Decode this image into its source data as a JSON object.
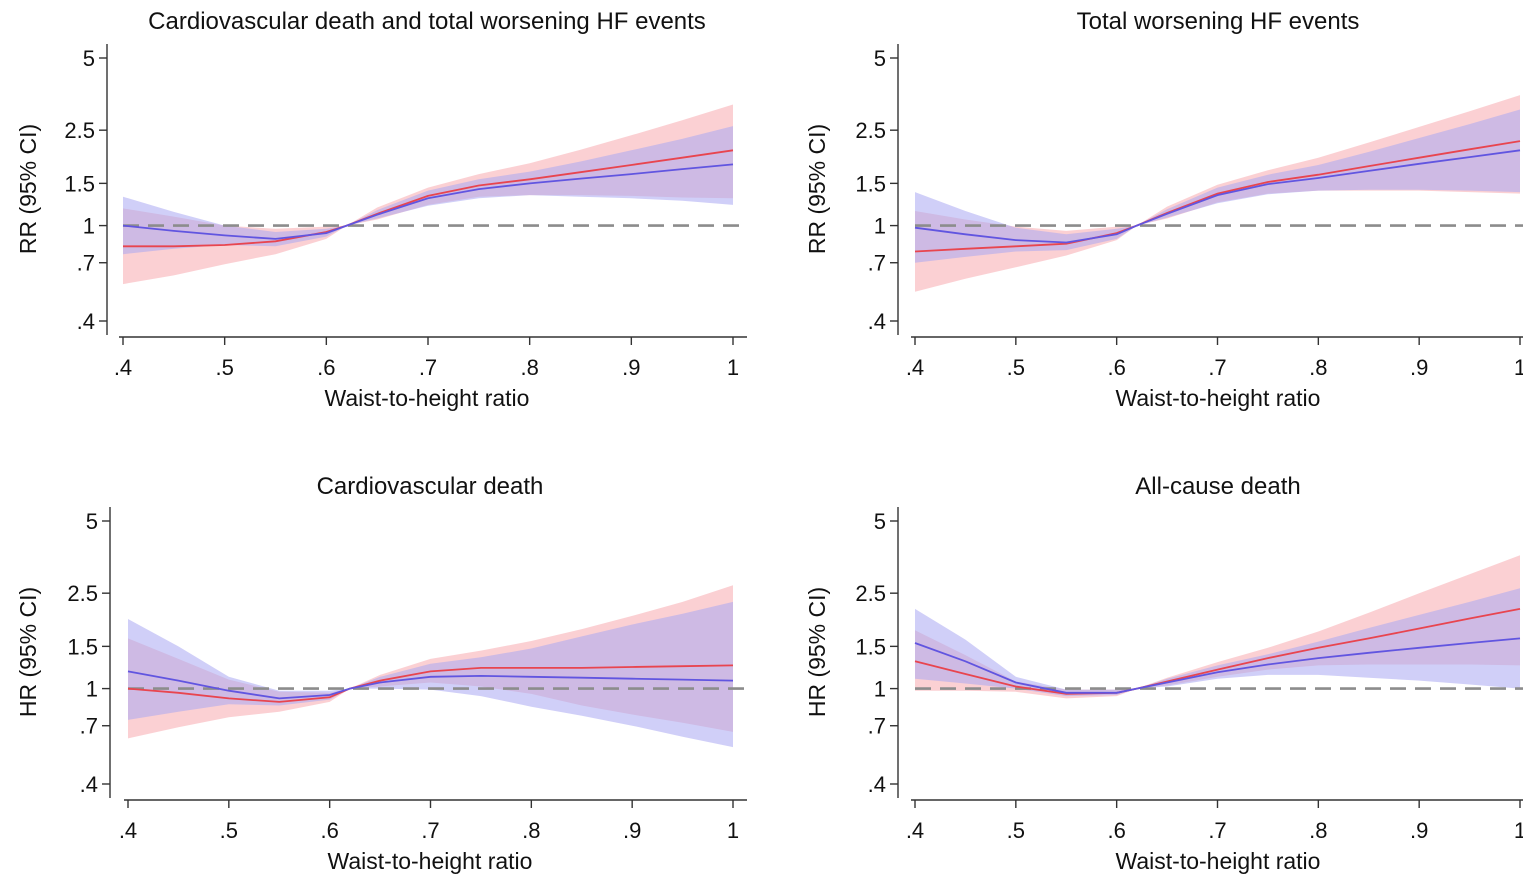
{
  "figure": {
    "colors": {
      "red": "#e8454f",
      "blue": "#6155e0",
      "red_band": "#f7a9ae",
      "blue_band": "#aaa8f2",
      "reference": "#8c8c8c"
    }
  },
  "chart_data": [
    {
      "type": "line",
      "title": "Cardiovascular death and total worsening HF events",
      "xlabel": "Waist-to-height ratio",
      "ylabel": "RR (95% CI)",
      "y_scale": "log",
      "xlim": [
        0.4,
        1.0
      ],
      "ylim": [
        0.36,
        5.5
      ],
      "x_ticks": [
        0.4,
        0.5,
        0.6,
        0.7,
        0.8,
        0.9,
        1.0
      ],
      "x_tick_labels": [
        ".4",
        ".5",
        ".6",
        ".7",
        ".8",
        ".9",
        "1"
      ],
      "y_ticks": [
        0.4,
        0.7,
        1,
        1.5,
        2.5,
        5
      ],
      "y_tick_labels": [
        ".4",
        ".7",
        "1",
        "1.5",
        "2.5",
        "5"
      ],
      "reference_line": 1,
      "x": [
        0.4,
        0.45,
        0.5,
        0.55,
        0.6,
        0.62,
        0.65,
        0.7,
        0.75,
        0.8,
        0.85,
        0.9,
        0.95,
        1.0
      ],
      "series": [
        {
          "color": "red",
          "values": [
            0.82,
            0.82,
            0.83,
            0.86,
            0.94,
            1.0,
            1.12,
            1.33,
            1.47,
            1.56,
            1.67,
            1.79,
            1.92,
            2.06
          ],
          "lower": [
            0.57,
            0.62,
            0.69,
            0.76,
            0.88,
            1.0,
            1.06,
            1.22,
            1.32,
            1.34,
            1.34,
            1.33,
            1.31,
            1.3
          ],
          "upper": [
            1.18,
            1.09,
            1.0,
            0.97,
            0.99,
            1.0,
            1.19,
            1.44,
            1.64,
            1.82,
            2.07,
            2.38,
            2.75,
            3.2
          ]
        },
        {
          "color": "blue",
          "values": [
            1.0,
            0.95,
            0.91,
            0.88,
            0.93,
            1.0,
            1.11,
            1.3,
            1.42,
            1.5,
            1.57,
            1.64,
            1.72,
            1.8
          ],
          "lower": [
            0.76,
            0.8,
            0.83,
            0.82,
            0.9,
            1.0,
            1.07,
            1.21,
            1.3,
            1.34,
            1.32,
            1.3,
            1.27,
            1.22
          ],
          "upper": [
            1.32,
            1.14,
            1.0,
            0.94,
            0.97,
            1.0,
            1.16,
            1.4,
            1.56,
            1.68,
            1.85,
            2.06,
            2.3,
            2.6
          ]
        }
      ]
    },
    {
      "type": "line",
      "title": "Total worsening HF events",
      "xlabel": "Waist-to-height ratio",
      "ylabel": "RR (95% CI)",
      "y_scale": "log",
      "xlim": [
        0.4,
        1.0
      ],
      "ylim": [
        0.36,
        5.5
      ],
      "x_ticks": [
        0.4,
        0.5,
        0.6,
        0.7,
        0.8,
        0.9,
        1.0
      ],
      "x_tick_labels": [
        ".4",
        ".5",
        ".6",
        ".7",
        ".8",
        ".9",
        "1"
      ],
      "y_ticks": [
        0.4,
        0.7,
        1,
        1.5,
        2.5,
        5
      ],
      "y_tick_labels": [
        ".4",
        ".7",
        "1",
        "1.5",
        "2.5",
        "5"
      ],
      "reference_line": 1,
      "x": [
        0.4,
        0.45,
        0.5,
        0.55,
        0.6,
        0.62,
        0.65,
        0.7,
        0.75,
        0.8,
        0.85,
        0.9,
        0.95,
        1.0
      ],
      "series": [
        {
          "color": "red",
          "values": [
            0.78,
            0.8,
            0.82,
            0.84,
            0.93,
            1.0,
            1.13,
            1.36,
            1.52,
            1.63,
            1.77,
            1.92,
            2.08,
            2.25
          ],
          "lower": [
            0.53,
            0.6,
            0.67,
            0.75,
            0.87,
            1.0,
            1.07,
            1.25,
            1.36,
            1.4,
            1.4,
            1.4,
            1.38,
            1.36
          ],
          "upper": [
            1.15,
            1.06,
            0.99,
            0.95,
            0.99,
            1.0,
            1.2,
            1.48,
            1.7,
            1.92,
            2.22,
            2.58,
            3.0,
            3.5
          ]
        },
        {
          "color": "blue",
          "values": [
            0.98,
            0.92,
            0.87,
            0.85,
            0.92,
            1.0,
            1.12,
            1.34,
            1.49,
            1.58,
            1.69,
            1.81,
            1.93,
            2.06
          ],
          "lower": [
            0.7,
            0.74,
            0.78,
            0.79,
            0.88,
            1.0,
            1.08,
            1.24,
            1.35,
            1.4,
            1.41,
            1.41,
            1.4,
            1.38
          ],
          "upper": [
            1.38,
            1.15,
            0.98,
            0.92,
            0.97,
            1.0,
            1.17,
            1.44,
            1.63,
            1.79,
            2.03,
            2.32,
            2.65,
            3.05
          ]
        }
      ]
    },
    {
      "type": "line",
      "title": "Cardiovascular death",
      "xlabel": "Waist-to-height ratio",
      "ylabel": "HR (95% CI)",
      "y_scale": "log",
      "xlim": [
        0.4,
        1.0
      ],
      "ylim": [
        0.36,
        5.5
      ],
      "x_ticks": [
        0.4,
        0.5,
        0.6,
        0.7,
        0.8,
        0.9,
        1.0
      ],
      "x_tick_labels": [
        ".4",
        ".5",
        ".6",
        ".7",
        ".8",
        ".9",
        "1"
      ],
      "y_ticks": [
        0.4,
        0.7,
        1,
        1.5,
        2.5,
        5
      ],
      "y_tick_labels": [
        ".4",
        ".7",
        "1",
        "1.5",
        "2.5",
        "5"
      ],
      "reference_line": 1,
      "x": [
        0.4,
        0.45,
        0.5,
        0.55,
        0.6,
        0.62,
        0.65,
        0.7,
        0.75,
        0.8,
        0.85,
        0.9,
        0.95,
        1.0
      ],
      "series": [
        {
          "color": "red",
          "values": [
            1.0,
            0.96,
            0.91,
            0.88,
            0.92,
            1.0,
            1.08,
            1.18,
            1.22,
            1.22,
            1.22,
            1.23,
            1.24,
            1.25
          ],
          "lower": [
            0.62,
            0.69,
            0.76,
            0.8,
            0.88,
            1.0,
            1.02,
            1.06,
            1.02,
            0.95,
            0.85,
            0.78,
            0.72,
            0.66
          ],
          "upper": [
            1.62,
            1.33,
            1.09,
            0.97,
            0.96,
            1.0,
            1.14,
            1.33,
            1.44,
            1.58,
            1.77,
            2.01,
            2.3,
            2.7
          ]
        },
        {
          "color": "blue",
          "values": [
            1.18,
            1.08,
            0.98,
            0.91,
            0.94,
            1.0,
            1.06,
            1.12,
            1.13,
            1.12,
            1.11,
            1.1,
            1.09,
            1.08
          ],
          "lower": [
            0.74,
            0.8,
            0.86,
            0.85,
            0.9,
            1.0,
            1.0,
            0.99,
            0.93,
            0.84,
            0.77,
            0.7,
            0.63,
            0.57
          ],
          "upper": [
            1.95,
            1.5,
            1.12,
            0.98,
            0.98,
            1.0,
            1.12,
            1.27,
            1.35,
            1.47,
            1.65,
            1.85,
            2.05,
            2.3
          ]
        }
      ]
    },
    {
      "type": "line",
      "title": "All-cause death",
      "xlabel": "Waist-to-height ratio",
      "ylabel": "HR (95% CI)",
      "y_scale": "log",
      "xlim": [
        0.4,
        1.0
      ],
      "ylim": [
        0.36,
        5.5
      ],
      "x_ticks": [
        0.4,
        0.5,
        0.6,
        0.7,
        0.8,
        0.9,
        1.0
      ],
      "x_tick_labels": [
        ".4",
        ".5",
        ".6",
        ".7",
        ".8",
        ".9",
        "1"
      ],
      "y_ticks": [
        0.4,
        0.7,
        1,
        1.5,
        2.5,
        5
      ],
      "y_tick_labels": [
        ".4",
        ".7",
        "1",
        "1.5",
        "2.5",
        "5"
      ],
      "reference_line": 1,
      "x": [
        0.4,
        0.45,
        0.5,
        0.55,
        0.6,
        0.62,
        0.65,
        0.7,
        0.75,
        0.8,
        0.85,
        0.9,
        0.95,
        1.0
      ],
      "series": [
        {
          "color": "red",
          "values": [
            1.3,
            1.15,
            1.02,
            0.95,
            0.96,
            1.0,
            1.07,
            1.2,
            1.34,
            1.48,
            1.62,
            1.78,
            1.96,
            2.15
          ],
          "lower": [
            0.98,
            0.98,
            0.97,
            0.91,
            0.93,
            1.0,
            1.03,
            1.12,
            1.2,
            1.25,
            1.26,
            1.26,
            1.26,
            1.25
          ],
          "upper": [
            1.75,
            1.38,
            1.07,
            0.99,
            0.99,
            1.0,
            1.11,
            1.29,
            1.48,
            1.73,
            2.07,
            2.5,
            3.0,
            3.6
          ]
        },
        {
          "color": "blue",
          "values": [
            1.55,
            1.3,
            1.06,
            0.96,
            0.96,
            1.0,
            1.06,
            1.17,
            1.26,
            1.34,
            1.41,
            1.48,
            1.55,
            1.62
          ],
          "lower": [
            1.1,
            1.05,
            1.0,
            0.93,
            0.94,
            1.0,
            1.02,
            1.1,
            1.14,
            1.14,
            1.11,
            1.08,
            1.04,
            1.0
          ],
          "upper": [
            2.15,
            1.6,
            1.12,
            0.99,
            0.99,
            1.0,
            1.1,
            1.25,
            1.39,
            1.57,
            1.79,
            2.03,
            2.3,
            2.62
          ]
        }
      ]
    }
  ]
}
